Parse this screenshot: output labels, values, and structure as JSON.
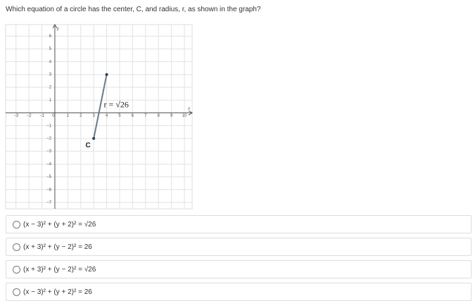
{
  "question": "Which equation of a circle has the center, C, and radius, r, as shown in the graph?",
  "graph": {
    "xlim": [
      -3.8,
      10.6
    ],
    "ylim": [
      -7.5,
      6.9
    ],
    "xticks": [
      {
        "value": -3,
        "label": "−3"
      },
      {
        "value": -2,
        "label": "−2"
      },
      {
        "value": -1,
        "label": "−1"
      },
      0,
      1,
      2,
      3,
      4,
      5,
      6,
      7,
      8,
      9,
      10
    ],
    "yticks": [
      {
        "value": -7,
        "label": "−7"
      },
      {
        "value": -6,
        "label": "−6"
      },
      {
        "value": -5,
        "label": "−5"
      },
      {
        "value": -4,
        "label": "−4"
      },
      {
        "value": -3,
        "label": "−3"
      },
      {
        "value": -2,
        "label": "−2"
      },
      {
        "value": -1,
        "label": "−1"
      },
      1,
      2,
      3,
      4,
      5,
      6
    ],
    "x_label": "x",
    "y_label": "y",
    "segment": {
      "x": [
        3,
        4
      ],
      "y": [
        -2,
        3
      ]
    },
    "center_label": "C",
    "radius_label": "r = √26"
  },
  "options": [
    "(x − 3)² + (y + 2)² = √26",
    "(x + 3)² + (y − 2)² = 26",
    "(x + 3)² + (y − 2)² = √26",
    "(x − 3)² + (y + 2)² = 26"
  ]
}
